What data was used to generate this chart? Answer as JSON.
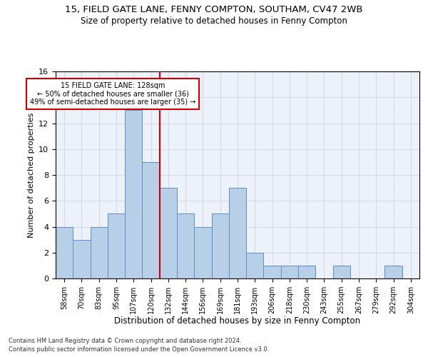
{
  "title1": "15, FIELD GATE LANE, FENNY COMPTON, SOUTHAM, CV47 2WB",
  "title2": "Size of property relative to detached houses in Fenny Compton",
  "xlabel": "Distribution of detached houses by size in Fenny Compton",
  "ylabel": "Number of detached properties",
  "footnote1": "Contains HM Land Registry data © Crown copyright and database right 2024.",
  "footnote2": "Contains public sector information licensed under the Open Government Licence v3.0.",
  "annotation_line1": "15 FIELD GATE LANE: 128sqm",
  "annotation_line2": "← 50% of detached houses are smaller (36)",
  "annotation_line3": "49% of semi-detached houses are larger (35) →",
  "bin_labels": [
    "58sqm",
    "70sqm",
    "83sqm",
    "95sqm",
    "107sqm",
    "120sqm",
    "132sqm",
    "144sqm",
    "156sqm",
    "169sqm",
    "181sqm",
    "193sqm",
    "206sqm",
    "218sqm",
    "230sqm",
    "243sqm",
    "255sqm",
    "267sqm",
    "279sqm",
    "292sqm",
    "304sqm"
  ],
  "bar_values": [
    4,
    3,
    4,
    5,
    13,
    9,
    7,
    5,
    4,
    5,
    7,
    2,
    1,
    1,
    1,
    0,
    1,
    0,
    0,
    1,
    0
  ],
  "bar_color": "#b8cfe8",
  "bar_edge_color": "#5b8dc8",
  "vline_x": 5.5,
  "vline_color": "#cc0000",
  "ylim": [
    0,
    16
  ],
  "yticks": [
    0,
    2,
    4,
    6,
    8,
    10,
    12,
    14,
    16
  ],
  "annotation_box_color": "#cc0000",
  "grid_color": "#d0d8e8",
  "bg_color": "#edf2fa"
}
